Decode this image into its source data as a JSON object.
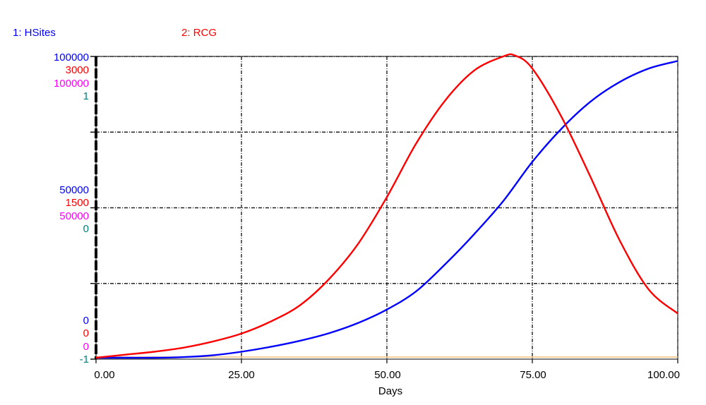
{
  "chart_data": {
    "type": "line",
    "xlabel": "Days",
    "xlim": [
      0,
      100
    ],
    "x_ticks": [
      "0.00",
      "25.00",
      "50.00",
      "75.00",
      "100.00"
    ],
    "grid": true,
    "legend": [
      {
        "label": "1: HSites",
        "color": "#0000ff"
      },
      {
        "label": "2: RCG",
        "color": "#ff0000"
      }
    ],
    "y_axes": [
      {
        "color": "#0000ff",
        "max": "100000",
        "mid": "50000",
        "min": "0"
      },
      {
        "color": "#ff0000",
        "max": "3000",
        "mid": "1500",
        "min": "0"
      },
      {
        "color": "#ff00ff",
        "max": "100000",
        "mid": "50000",
        "min": "0"
      },
      {
        "color": "#008080",
        "max": "1",
        "mid": "0",
        "min": "-1"
      }
    ],
    "series": [
      {
        "name": "1: HSites",
        "color": "#0000ff",
        "ylim": [
          0,
          100000
        ],
        "x": [
          0,
          5,
          10,
          15,
          20,
          25,
          30,
          35,
          40,
          45,
          50,
          55,
          60,
          65,
          70,
          75,
          80,
          85,
          90,
          95,
          100
        ],
        "values": [
          0,
          0,
          0,
          200,
          800,
          2000,
          3600,
          5600,
          8100,
          11500,
          16000,
          22000,
          31000,
          41000,
          52000,
          65000,
          76000,
          85000,
          91500,
          96000,
          98500
        ]
      },
      {
        "name": "2: RCG",
        "color": "#ff0000",
        "ylim": [
          0,
          3000
        ],
        "x": [
          0,
          5,
          10,
          15,
          20,
          25,
          30,
          35,
          40,
          45,
          50,
          55,
          60,
          65,
          70,
          72,
          75,
          80,
          85,
          90,
          95,
          100
        ],
        "values": [
          0,
          30,
          60,
          100,
          160,
          240,
          360,
          520,
          780,
          1130,
          1600,
          2130,
          2560,
          2860,
          3000,
          3010,
          2880,
          2400,
          1800,
          1170,
          680,
          440
        ]
      }
    ]
  }
}
